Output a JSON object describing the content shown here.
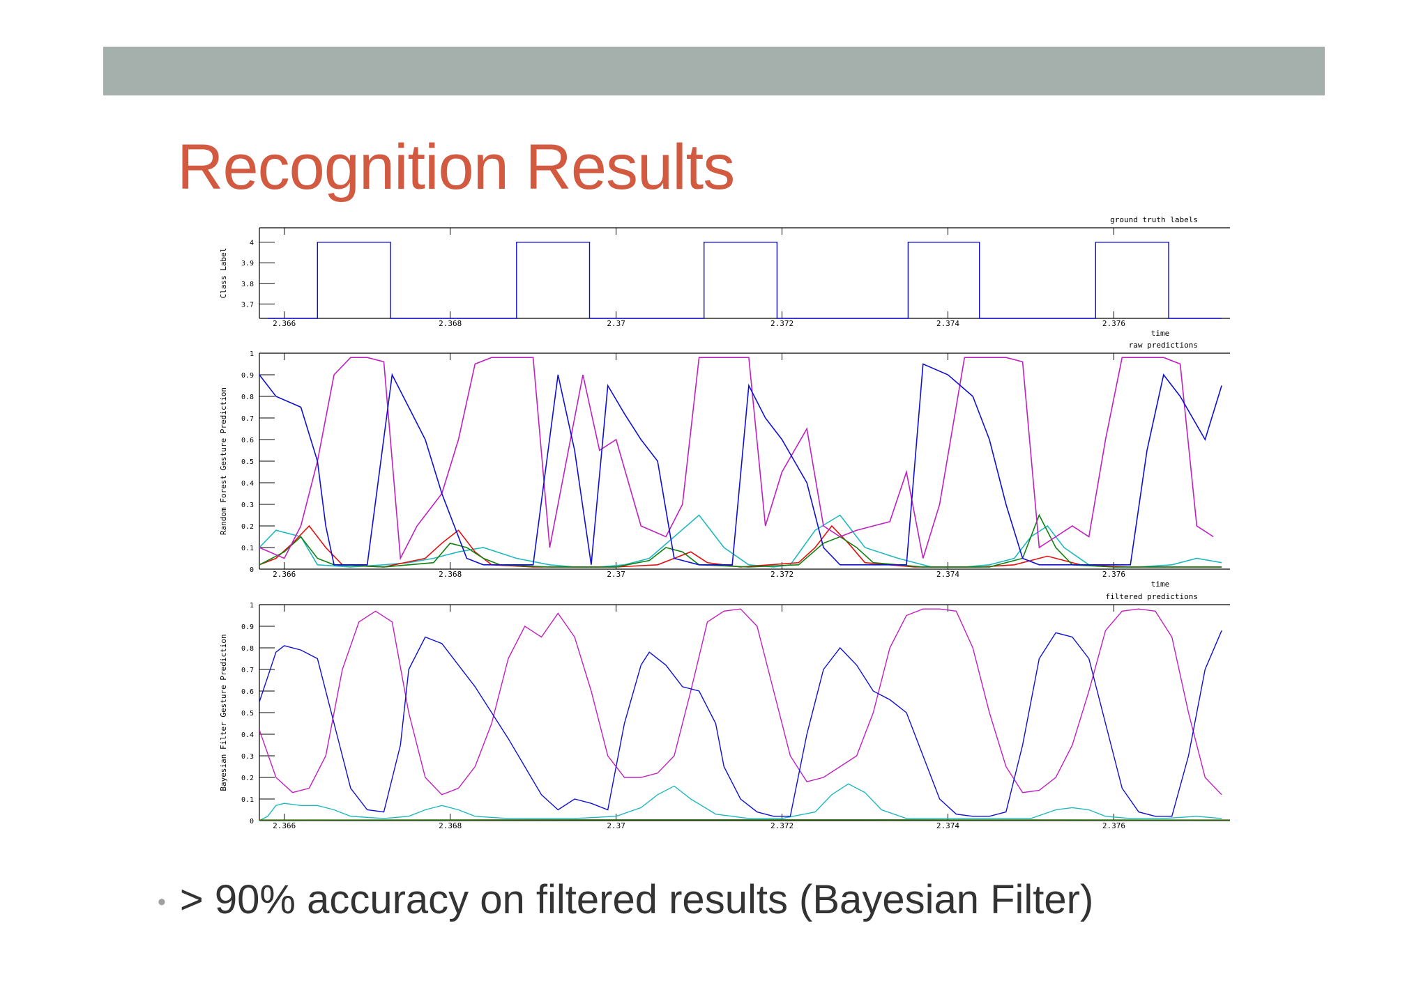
{
  "slide": {
    "title": "Recognition Results",
    "bullet_marker": "•",
    "bullet": "> 90% accuracy on filtered results (Bayesian Filter)"
  },
  "colors": {
    "header_band": "#a5b0ac",
    "title": "#d15a40",
    "series_blue": "#1010d0",
    "series_magenta": "#c020c0",
    "series_cyan": "#20b8c0",
    "series_red": "#e01010",
    "series_green": "#108010"
  },
  "chart_data": [
    {
      "type": "line",
      "title": "ground truth labels",
      "xlabel": "time",
      "ylabel": "Class Label",
      "xlim": [
        2.3657,
        2.3774
      ],
      "ylim": [
        3.63,
        4.07
      ],
      "xticks": [
        "2.366",
        "2.368",
        "2.37",
        "2.372",
        "2.374",
        "2.376"
      ],
      "yticks": [
        "3.7",
        "3.8",
        "3.9",
        "4"
      ],
      "series": [
        {
          "color": "blue",
          "x": [
            2.3658,
            2.3664,
            2.3664,
            2.36728,
            2.36728,
            2.3688,
            2.3688,
            2.36968,
            2.36968,
            2.37106,
            2.37106,
            2.37194,
            2.37194,
            2.37352,
            2.37352,
            2.37438,
            2.37438,
            2.37578,
            2.37578,
            2.37666,
            2.37666,
            2.3773
          ],
          "y": [
            3.63,
            3.63,
            4,
            4,
            3.63,
            3.63,
            4,
            4,
            3.63,
            3.63,
            4,
            4,
            3.63,
            3.63,
            4,
            4,
            3.63,
            3.63,
            4,
            4,
            3.63,
            3.63
          ]
        }
      ]
    },
    {
      "type": "line",
      "title": "raw predictions",
      "xlabel": "time",
      "ylabel": "Random Forest Gesture Prediction",
      "xlim": [
        2.3657,
        2.3774
      ],
      "ylim": [
        0,
        1
      ],
      "xticks": [
        "2.366",
        "2.368",
        "2.37",
        "2.372",
        "2.374",
        "2.376"
      ],
      "yticks": [
        "0",
        "0.1",
        "0.2",
        "0.3",
        "0.4",
        "0.5",
        "0.6",
        "0.7",
        "0.8",
        "0.9",
        "1"
      ],
      "series": [
        {
          "color": "blue",
          "x": [
            2.3657,
            2.3659,
            2.3662,
            2.3664,
            2.3665,
            2.3666,
            2.367,
            2.3673,
            2.3675,
            2.3677,
            2.3679,
            2.3682,
            2.3684,
            2.3686,
            2.3687,
            2.369,
            2.3693,
            2.3695,
            2.3697,
            2.3699,
            2.3701,
            2.3703,
            2.3705,
            2.3707,
            2.371,
            2.3712,
            2.3714,
            2.3716,
            2.3718,
            2.372,
            2.3723,
            2.3725,
            2.3727,
            2.3729,
            2.3731,
            2.3733,
            2.3735,
            2.3737,
            2.374,
            2.3743,
            2.3745,
            2.3747,
            2.3749,
            2.3751,
            2.3753,
            2.3755,
            2.3757,
            2.3759,
            2.3762,
            2.3764,
            2.3766,
            2.3768,
            2.3771,
            2.3773
          ],
          "y": [
            0.9,
            0.8,
            0.75,
            0.5,
            0.2,
            0.02,
            0.02,
            0.9,
            0.75,
            0.6,
            0.35,
            0.05,
            0.02,
            0.02,
            0.02,
            0.02,
            0.9,
            0.55,
            0.02,
            0.85,
            0.72,
            0.6,
            0.5,
            0.05,
            0.02,
            0.02,
            0.02,
            0.85,
            0.7,
            0.6,
            0.4,
            0.1,
            0.02,
            0.02,
            0.02,
            0.02,
            0.02,
            0.95,
            0.9,
            0.8,
            0.6,
            0.3,
            0.05,
            0.02,
            0.02,
            0.02,
            0.02,
            0.02,
            0.02,
            0.55,
            0.9,
            0.8,
            0.6,
            0.85
          ]
        },
        {
          "color": "magenta",
          "x": [
            2.3657,
            2.366,
            2.3662,
            2.3664,
            2.3666,
            2.3668,
            2.367,
            2.3672,
            2.3674,
            2.3676,
            2.3679,
            2.3681,
            2.3683,
            2.3685,
            2.3687,
            2.369,
            2.3692,
            2.3694,
            2.3696,
            2.3698,
            2.37,
            2.3703,
            2.3706,
            2.3708,
            2.371,
            2.3712,
            2.3714,
            2.3716,
            2.3718,
            2.372,
            2.3723,
            2.3725,
            2.3727,
            2.3729,
            2.3731,
            2.3733,
            2.3735,
            2.3737,
            2.3739,
            2.3742,
            2.3745,
            2.3747,
            2.3749,
            2.3751,
            2.3753,
            2.3755,
            2.3757,
            2.3759,
            2.3761,
            2.3764,
            2.3766,
            2.3768,
            2.377,
            2.3772
          ],
          "y": [
            0.1,
            0.05,
            0.2,
            0.5,
            0.9,
            0.98,
            0.98,
            0.96,
            0.05,
            0.2,
            0.35,
            0.6,
            0.95,
            0.98,
            0.98,
            0.98,
            0.1,
            0.5,
            0.9,
            0.55,
            0.6,
            0.2,
            0.15,
            0.3,
            0.98,
            0.98,
            0.98,
            0.98,
            0.2,
            0.45,
            0.65,
            0.2,
            0.15,
            0.18,
            0.2,
            0.22,
            0.45,
            0.05,
            0.3,
            0.98,
            0.98,
            0.98,
            0.96,
            0.1,
            0.15,
            0.2,
            0.15,
            0.6,
            0.98,
            0.98,
            0.98,
            0.95,
            0.2,
            0.15
          ]
        },
        {
          "color": "cyan",
          "x": [
            2.3657,
            2.3659,
            2.3662,
            2.3664,
            2.3668,
            2.3672,
            2.3675,
            2.3678,
            2.3681,
            2.3684,
            2.3688,
            2.3692,
            2.3695,
            2.3698,
            2.3701,
            2.3704,
            2.3707,
            2.371,
            2.3713,
            2.3716,
            2.3719,
            2.3721,
            2.3724,
            2.3727,
            2.373,
            2.3734,
            2.3738,
            2.3742,
            2.3745,
            2.3748,
            2.375,
            2.3752,
            2.3754,
            2.3757,
            2.376,
            2.3763,
            2.3767,
            2.377,
            2.3773
          ],
          "y": [
            0.1,
            0.18,
            0.15,
            0.02,
            0.01,
            0.02,
            0.03,
            0.05,
            0.08,
            0.1,
            0.05,
            0.02,
            0.01,
            0.01,
            0.02,
            0.05,
            0.15,
            0.25,
            0.1,
            0.02,
            0.01,
            0.02,
            0.18,
            0.25,
            0.1,
            0.05,
            0.01,
            0.01,
            0.02,
            0.05,
            0.15,
            0.2,
            0.1,
            0.02,
            0.01,
            0.01,
            0.02,
            0.05,
            0.03
          ]
        },
        {
          "color": "red",
          "x": [
            2.3657,
            2.3659,
            2.3661,
            2.3663,
            2.3665,
            2.3667,
            2.3672,
            2.3677,
            2.3679,
            2.3681,
            2.3683,
            2.3685,
            2.369,
            2.37,
            2.3705,
            2.3707,
            2.3709,
            2.3711,
            2.3715,
            2.3722,
            2.3724,
            2.3726,
            2.3728,
            2.373,
            2.3736,
            2.3744,
            2.3748,
            2.3752,
            2.3756,
            2.3762,
            2.3768,
            2.3773
          ],
          "y": [
            0.02,
            0.05,
            0.12,
            0.2,
            0.1,
            0.02,
            0.01,
            0.05,
            0.12,
            0.18,
            0.08,
            0.02,
            0.01,
            0.01,
            0.02,
            0.05,
            0.08,
            0.03,
            0.01,
            0.03,
            0.1,
            0.2,
            0.12,
            0.03,
            0.01,
            0.01,
            0.02,
            0.06,
            0.02,
            0.01,
            0.01,
            0.01
          ]
        },
        {
          "color": "green",
          "x": [
            2.3657,
            2.366,
            2.3662,
            2.3664,
            2.3666,
            2.3672,
            2.3678,
            2.368,
            2.3682,
            2.3684,
            2.3686,
            2.3692,
            2.37,
            2.3704,
            2.3706,
            2.3708,
            2.371,
            2.3716,
            2.3722,
            2.3725,
            2.3727,
            2.3729,
            2.3731,
            2.3737,
            2.3745,
            2.3749,
            2.3751,
            2.3753,
            2.3755,
            2.376,
            2.3768,
            2.3773
          ],
          "y": [
            0.02,
            0.08,
            0.15,
            0.05,
            0.02,
            0.01,
            0.03,
            0.12,
            0.1,
            0.05,
            0.02,
            0.01,
            0.01,
            0.04,
            0.1,
            0.08,
            0.02,
            0.01,
            0.02,
            0.12,
            0.15,
            0.1,
            0.03,
            0.01,
            0.01,
            0.05,
            0.25,
            0.1,
            0.02,
            0.01,
            0.01,
            0.01
          ]
        }
      ]
    },
    {
      "type": "line",
      "title": "filtered predictions",
      "xlabel": "",
      "ylabel": "Bayesian Filter Gesture Prediction",
      "xlim": [
        2.3657,
        2.3774
      ],
      "ylim": [
        0,
        1
      ],
      "xticks": [
        "2.366",
        "2.368",
        "2.37",
        "2.372",
        "2.374",
        "2.376"
      ],
      "yticks": [
        "0",
        "0.1",
        "0.2",
        "0.3",
        "0.4",
        "0.5",
        "0.6",
        "0.7",
        "0.8",
        "0.9",
        "1"
      ],
      "series": [
        {
          "color": "blue",
          "x": [
            2.3657,
            2.3659,
            2.366,
            2.3662,
            2.3664,
            2.3666,
            2.3668,
            2.367,
            2.3672,
            2.3674,
            2.3675,
            2.3677,
            2.3679,
            2.3681,
            2.3683,
            2.3685,
            2.3687,
            2.3689,
            2.3691,
            2.3693,
            2.3695,
            2.3697,
            2.3699,
            2.3701,
            2.3703,
            2.3704,
            2.3706,
            2.3708,
            2.371,
            2.3712,
            2.3713,
            2.3715,
            2.3717,
            2.3719,
            2.3721,
            2.3723,
            2.3725,
            2.3727,
            2.3729,
            2.3731,
            2.3733,
            2.3735,
            2.3737,
            2.3739,
            2.3741,
            2.3743,
            2.3745,
            2.3747,
            2.3749,
            2.3751,
            2.3753,
            2.3755,
            2.3757,
            2.3759,
            2.3761,
            2.3763,
            2.3765,
            2.3767,
            2.3769,
            2.3771,
            2.3773
          ],
          "y": [
            0.55,
            0.78,
            0.81,
            0.79,
            0.75,
            0.45,
            0.15,
            0.05,
            0.04,
            0.35,
            0.7,
            0.85,
            0.82,
            0.72,
            0.62,
            0.5,
            0.38,
            0.25,
            0.12,
            0.05,
            0.1,
            0.08,
            0.05,
            0.45,
            0.72,
            0.78,
            0.72,
            0.62,
            0.6,
            0.45,
            0.25,
            0.1,
            0.04,
            0.02,
            0.02,
            0.4,
            0.7,
            0.8,
            0.72,
            0.6,
            0.56,
            0.5,
            0.3,
            0.1,
            0.03,
            0.02,
            0.02,
            0.04,
            0.35,
            0.75,
            0.87,
            0.85,
            0.75,
            0.45,
            0.15,
            0.04,
            0.02,
            0.02,
            0.3,
            0.7,
            0.88
          ]
        },
        {
          "color": "magenta",
          "x": [
            2.3657,
            2.3659,
            2.3661,
            2.3663,
            2.3665,
            2.3667,
            2.3669,
            2.3671,
            2.3673,
            2.3675,
            2.3677,
            2.3679,
            2.3681,
            2.3683,
            2.3685,
            2.3687,
            2.3689,
            2.3691,
            2.3693,
            2.3695,
            2.3697,
            2.3699,
            2.3701,
            2.3703,
            2.3705,
            2.3707,
            2.3709,
            2.3711,
            2.3713,
            2.3715,
            2.3717,
            2.3719,
            2.3721,
            2.3723,
            2.3725,
            2.3727,
            2.3729,
            2.3731,
            2.3733,
            2.3735,
            2.3737,
            2.3739,
            2.3741,
            2.3743,
            2.3745,
            2.3747,
            2.3749,
            2.3751,
            2.3753,
            2.3755,
            2.3757,
            2.3759,
            2.3761,
            2.3763,
            2.3765,
            2.3767,
            2.3769,
            2.3771,
            2.3773
          ],
          "y": [
            0.42,
            0.2,
            0.13,
            0.15,
            0.3,
            0.7,
            0.92,
            0.97,
            0.92,
            0.5,
            0.2,
            0.12,
            0.15,
            0.25,
            0.45,
            0.75,
            0.9,
            0.85,
            0.96,
            0.85,
            0.6,
            0.3,
            0.2,
            0.2,
            0.22,
            0.3,
            0.6,
            0.92,
            0.97,
            0.98,
            0.9,
            0.6,
            0.3,
            0.18,
            0.2,
            0.25,
            0.3,
            0.5,
            0.8,
            0.95,
            0.98,
            0.98,
            0.97,
            0.8,
            0.5,
            0.25,
            0.13,
            0.14,
            0.2,
            0.35,
            0.6,
            0.88,
            0.97,
            0.98,
            0.97,
            0.85,
            0.5,
            0.2,
            0.12
          ]
        },
        {
          "color": "cyan",
          "x": [
            2.3657,
            2.3658,
            2.3659,
            2.366,
            2.3662,
            2.3664,
            2.3666,
            2.3668,
            2.3672,
            2.3675,
            2.3677,
            2.3679,
            2.3681,
            2.3683,
            2.3687,
            2.369,
            2.3695,
            2.37,
            2.3703,
            2.3705,
            2.3707,
            2.3709,
            2.3712,
            2.3716,
            2.372,
            2.3724,
            2.3726,
            2.3728,
            2.373,
            2.3732,
            2.3735,
            2.374,
            2.3745,
            2.375,
            2.3753,
            2.3755,
            2.3757,
            2.3759,
            2.3762,
            2.3766,
            2.377,
            2.3773
          ],
          "y": [
            0.0,
            0.02,
            0.07,
            0.08,
            0.07,
            0.07,
            0.05,
            0.02,
            0.01,
            0.02,
            0.05,
            0.07,
            0.05,
            0.02,
            0.01,
            0.01,
            0.01,
            0.02,
            0.06,
            0.12,
            0.16,
            0.1,
            0.03,
            0.01,
            0.01,
            0.04,
            0.12,
            0.17,
            0.13,
            0.05,
            0.01,
            0.01,
            0.01,
            0.01,
            0.05,
            0.06,
            0.05,
            0.02,
            0.01,
            0.01,
            0.02,
            0.01
          ]
        },
        {
          "color": "red",
          "x": [
            2.3657,
            2.37,
            2.373,
            2.3774
          ],
          "y": [
            0.003,
            0.004,
            0.004,
            0.003
          ]
        },
        {
          "color": "green",
          "x": [
            2.3657,
            2.37,
            2.373,
            2.3774
          ],
          "y": [
            0.002,
            0.003,
            0.003,
            0.002
          ]
        }
      ]
    }
  ]
}
